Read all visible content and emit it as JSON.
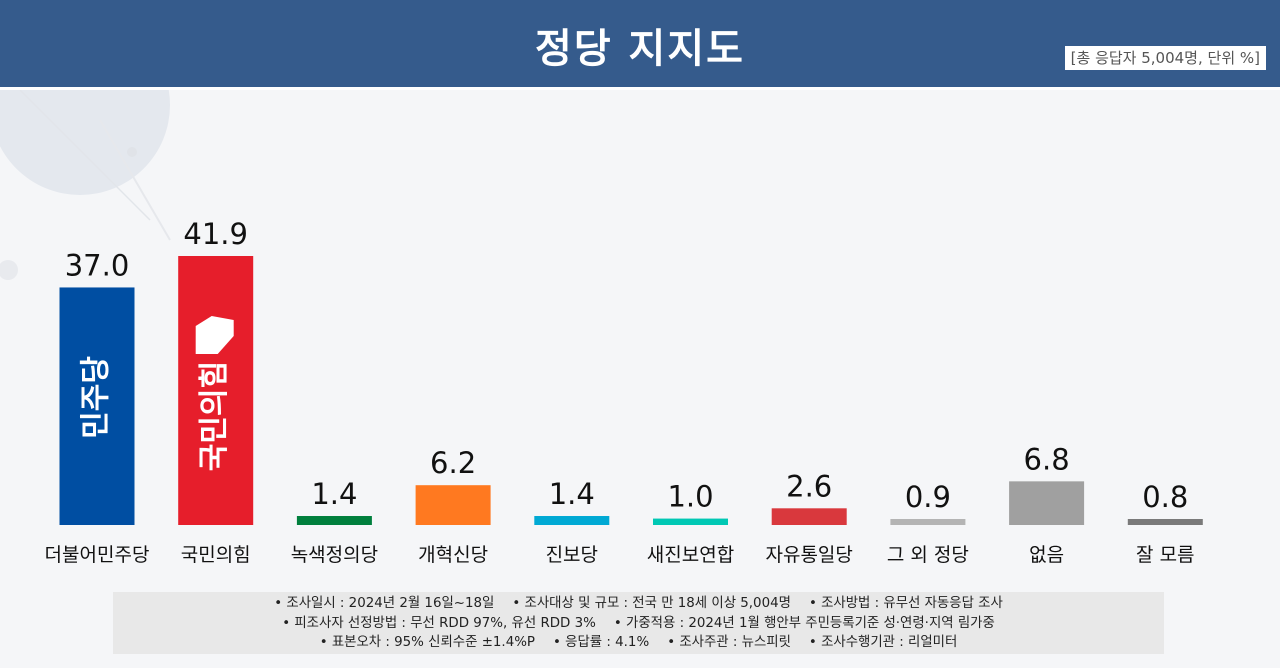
{
  "header": {
    "title": "정당 지지도",
    "subtitle": "[총 응답자 5,004명, 단위 %]"
  },
  "colors": {
    "header_bg": "#355b8c",
    "notes_bg": "#e8e8e8"
  },
  "chart_data": {
    "type": "bar",
    "unit": "%",
    "categories": [
      "더불어민주당",
      "국민의힘",
      "녹색정의당",
      "개혁신당",
      "진보당",
      "새진보연합",
      "자유통일당",
      "그 외 정당",
      "없음",
      "잘 모름"
    ],
    "values": [
      37.0,
      41.9,
      1.4,
      6.2,
      1.4,
      1.0,
      2.6,
      0.9,
      6.8,
      0.8
    ],
    "value_labels": [
      "37.0",
      "41.9",
      "1.4",
      "6.2",
      "1.4",
      "1.0",
      "2.6",
      "0.9",
      "6.8",
      "0.8"
    ],
    "colors": [
      "#004ea2",
      "#e61e2b",
      "#007f3d",
      "#ff7920",
      "#00a9d4",
      "#00c8b4",
      "#d9383d",
      "#b4b4b4",
      "#a0a0a0",
      "#7a7a7a"
    ],
    "bar_logos": [
      "민주당",
      "국민의힘",
      "",
      "",
      "",
      "",
      "",
      "",
      "",
      ""
    ],
    "ylim": [
      0,
      41.9
    ],
    "grid": false,
    "legend": "none"
  },
  "notes": [
    [
      "• 조사일시 : 2024년 2월 16일~18일",
      "• 조사대상 및 규모 : 전국 만 18세 이상 5,004명",
      "• 조사방법 : 유무선 자동응답 조사"
    ],
    [
      "• 피조사자 선정방법 : 무선 RDD 97%, 유선 RDD 3%",
      "• 가중적용 : 2024년 1월 행안부 주민등록기준 성·연령·지역 림가중"
    ],
    [
      "• 표본오차 : 95% 신뢰수준 ±1.4%P",
      "• 응답률 : 4.1%",
      "• 조사주관 : 뉴스피릿",
      "• 조사수행기관 : 리얼미터"
    ]
  ]
}
